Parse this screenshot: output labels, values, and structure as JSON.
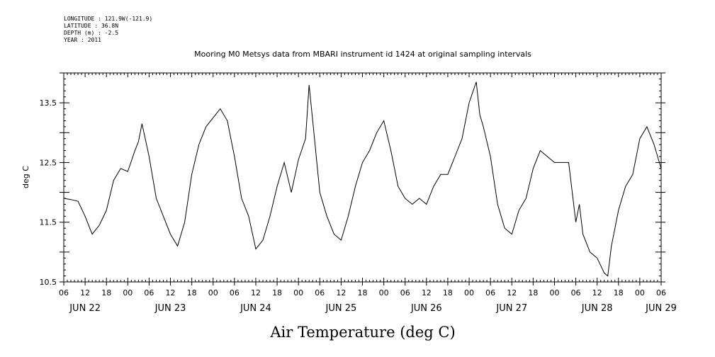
{
  "metadata": {
    "longitude": "LONGITUDE : 121.9W(-121.9)",
    "latitude": "LATITUDE : 36.8N",
    "depth": "DEPTH (m) : -2.5",
    "year": "YEAR : 2011"
  },
  "chart_data": {
    "type": "line",
    "title": "Mooring M0 Metsys data from MBARI instrument id 1424 at original sampling intervals",
    "ylabel": "deg C",
    "caption": "Air Temperature (deg C)",
    "ylim": [
      10.5,
      14.0
    ],
    "y_ticks": [
      "10.5",
      "11.5",
      "12.5",
      "13.5"
    ],
    "xlim": [
      "2011-06-22 06:00",
      "2011-06-29 06:00"
    ],
    "x_hour_labels": [
      "06",
      "12",
      "18",
      "00",
      "06",
      "12",
      "18",
      "00",
      "06",
      "12",
      "18",
      "00",
      "06",
      "12",
      "18",
      "00",
      "06",
      "12",
      "18",
      "00",
      "06",
      "12",
      "18",
      "00",
      "06",
      "12",
      "18",
      "00",
      "06"
    ],
    "x_day_labels": [
      "JUN 22",
      "JUN 23",
      "JUN 24",
      "JUN 25",
      "JUN 26",
      "JUN 27",
      "JUN 28",
      "JUN 29"
    ],
    "series": [
      {
        "x": [
          "2011-06-22 06:00",
          "2011-06-22 08:00",
          "2011-06-22 10:00",
          "2011-06-22 12:00",
          "2011-06-22 14:00",
          "2011-06-22 16:00",
          "2011-06-22 18:00",
          "2011-06-22 20:00",
          "2011-06-22 22:00",
          "2011-06-23 00:00",
          "2011-06-23 02:00",
          "2011-06-23 03:00",
          "2011-06-23 04:00",
          "2011-06-23 06:00",
          "2011-06-23 08:00",
          "2011-06-23 10:00",
          "2011-06-23 12:00",
          "2011-06-23 14:00",
          "2011-06-23 16:00",
          "2011-06-23 18:00",
          "2011-06-23 20:00",
          "2011-06-23 22:00",
          "2011-06-24 00:00",
          "2011-06-24 02:00",
          "2011-06-24 04:00",
          "2011-06-24 05:00",
          "2011-06-24 06:00",
          "2011-06-24 08:00",
          "2011-06-24 10:00",
          "2011-06-24 12:00",
          "2011-06-24 14:00",
          "2011-06-24 16:00",
          "2011-06-24 18:00",
          "2011-06-24 20:00",
          "2011-06-24 22:00",
          "2011-06-25 00:00",
          "2011-06-25 02:00",
          "2011-06-25 03:00",
          "2011-06-25 04:00",
          "2011-06-25 06:00",
          "2011-06-25 08:00",
          "2011-06-25 10:00",
          "2011-06-25 12:00",
          "2011-06-25 14:00",
          "2011-06-25 16:00",
          "2011-06-25 18:00",
          "2011-06-25 20:00",
          "2011-06-25 22:00",
          "2011-06-26 00:00",
          "2011-06-26 02:00",
          "2011-06-26 03:00",
          "2011-06-26 04:00",
          "2011-06-26 06:00",
          "2011-06-26 08:00",
          "2011-06-26 10:00",
          "2011-06-26 12:00",
          "2011-06-26 14:00",
          "2011-06-26 16:00",
          "2011-06-26 18:00",
          "2011-06-26 20:00",
          "2011-06-26 22:00",
          "2011-06-27 00:00",
          "2011-06-27 02:00",
          "2011-06-27 03:00",
          "2011-06-27 04:00",
          "2011-06-27 06:00",
          "2011-06-27 08:00",
          "2011-06-27 10:00",
          "2011-06-27 12:00",
          "2011-06-27 14:00",
          "2011-06-27 16:00",
          "2011-06-27 18:00",
          "2011-06-27 20:00",
          "2011-06-27 22:00",
          "2011-06-28 00:00",
          "2011-06-28 04:00",
          "2011-06-28 06:00",
          "2011-06-28 07:00",
          "2011-06-28 08:00",
          "2011-06-28 10:00",
          "2011-06-28 12:00",
          "2011-06-28 14:00",
          "2011-06-28 15:00",
          "2011-06-28 16:00",
          "2011-06-28 18:00",
          "2011-06-28 20:00",
          "2011-06-28 22:00",
          "2011-06-29 00:00",
          "2011-06-29 02:00",
          "2011-06-29 04:00",
          "2011-06-29 05:00",
          "2011-06-29 06:00"
        ],
        "y": [
          11.9,
          11.88,
          11.85,
          11.6,
          11.3,
          11.45,
          11.7,
          12.2,
          12.4,
          12.35,
          12.7,
          12.85,
          13.15,
          12.6,
          11.9,
          11.6,
          11.3,
          11.1,
          11.5,
          12.3,
          12.8,
          13.1,
          13.25,
          13.4,
          13.2,
          12.9,
          12.6,
          11.9,
          11.6,
          11.05,
          11.2,
          11.6,
          12.1,
          12.5,
          12.0,
          12.55,
          12.9,
          13.8,
          13.2,
          12.0,
          11.6,
          11.3,
          11.2,
          11.6,
          12.1,
          12.5,
          12.7,
          13.0,
          13.2,
          12.7,
          12.4,
          12.1,
          11.9,
          11.8,
          11.9,
          11.8,
          12.1,
          12.3,
          12.3,
          12.6,
          12.9,
          13.5,
          13.85,
          13.3,
          13.1,
          12.6,
          11.8,
          11.4,
          11.3,
          11.7,
          11.9,
          12.4,
          12.7,
          12.6,
          12.5,
          12.5,
          11.5,
          11.8,
          11.3,
          11.0,
          10.9,
          10.65,
          10.6,
          11.1,
          11.7,
          12.1,
          12.3,
          12.9,
          13.1,
          12.8,
          12.6,
          12.4
        ]
      }
    ]
  }
}
